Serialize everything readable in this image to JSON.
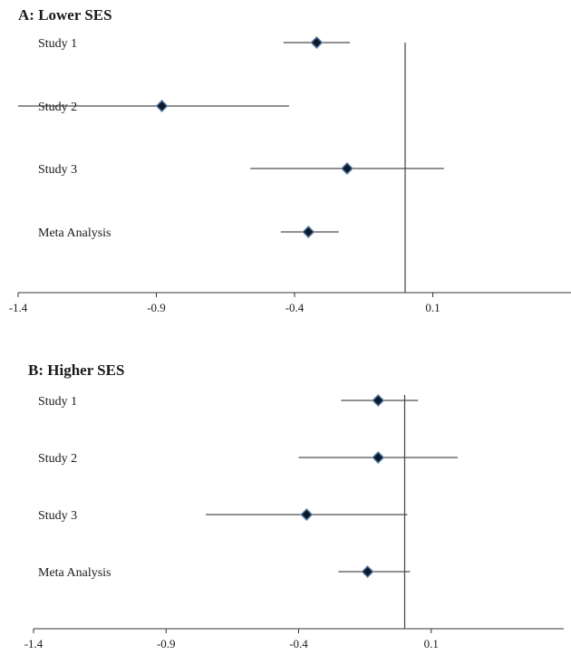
{
  "chart_data": [
    {
      "type": "forest",
      "title": "A: Lower SES",
      "xlim": [
        -1.4,
        0.6
      ],
      "xticks": [
        -1.4,
        -0.9,
        -0.4,
        0.1
      ],
      "x_tick_labels": [
        "-1.4",
        "-0.9",
        "-0.4",
        "0.1"
      ],
      "reference_line": 0.0,
      "rows": [
        {
          "label": "Study 1",
          "estimate": -0.32,
          "lower": -0.44,
          "upper": -0.2
        },
        {
          "label": "Study 2",
          "estimate": -0.88,
          "lower": -1.4,
          "upper": -0.42
        },
        {
          "label": "Study 3",
          "estimate": -0.21,
          "lower": -0.56,
          "upper": 0.14
        },
        {
          "label": "Meta Analysis",
          "estimate": -0.35,
          "lower": -0.45,
          "upper": -0.24
        }
      ]
    },
    {
      "type": "forest",
      "title": "B: Higher SES",
      "xlim": [
        -1.4,
        0.6
      ],
      "xticks": [
        -1.4,
        -0.9,
        -0.4,
        0.1
      ],
      "x_tick_labels": [
        "-1.4",
        "-0.9",
        "-0.4",
        "0.1"
      ],
      "reference_line": 0.0,
      "rows": [
        {
          "label": "Study 1",
          "estimate": -0.1,
          "lower": -0.24,
          "upper": 0.05
        },
        {
          "label": "Study 2",
          "estimate": -0.1,
          "lower": -0.4,
          "upper": 0.2
        },
        {
          "label": "Study 3",
          "estimate": -0.37,
          "lower": -0.75,
          "upper": 0.01
        },
        {
          "label": "Meta Analysis",
          "estimate": -0.14,
          "lower": -0.25,
          "upper": 0.02
        }
      ]
    }
  ]
}
